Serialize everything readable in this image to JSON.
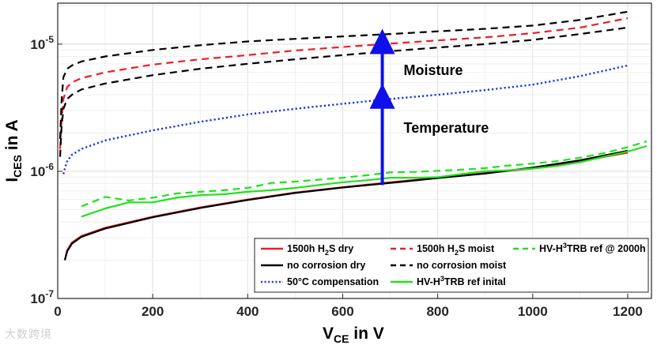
{
  "chart_data": {
    "type": "line",
    "xlabel": "V_CE in V",
    "ylabel": "I_CES in A",
    "xlim": [
      0,
      1250
    ],
    "ylim": [
      1e-07,
      2.1e-05
    ],
    "yscale": "log",
    "grid": true,
    "legend_position": "bottom-right",
    "x_ticks": [
      "0",
      "200",
      "400",
      "600",
      "800",
      "1000",
      "1200"
    ],
    "y_ticks": [
      "10^-7",
      "10^-6",
      "10^-5"
    ],
    "series": [
      {
        "name": "1500h H2S dry",
        "color": "#e8202a",
        "dash": "solid",
        "x": [
          15,
          20,
          30,
          50,
          100,
          200,
          300,
          400,
          500,
          600,
          700,
          800,
          900,
          1000,
          1100,
          1200
        ],
        "y": [
          2e-07,
          2.4e-07,
          2.75e-07,
          3.1e-07,
          3.6e-07,
          4.4e-07,
          5.2e-07,
          6e-07,
          6.8e-07,
          7.5e-07,
          8.2e-07,
          8.9e-07,
          9.7e-07,
          1.05e-06,
          1.2e-06,
          1.4e-06
        ]
      },
      {
        "name": "no corrosion dry",
        "color": "#000000",
        "dash": "solid",
        "x": [
          15,
          20,
          30,
          50,
          100,
          200,
          300,
          400,
          500,
          600,
          700,
          800,
          900,
          1000,
          1100,
          1200
        ],
        "y": [
          2e-07,
          2.35e-07,
          2.7e-07,
          3.05e-07,
          3.55e-07,
          4.35e-07,
          5.15e-07,
          5.95e-07,
          6.75e-07,
          7.45e-07,
          8.1e-07,
          8.85e-07,
          9.6e-07,
          1.07e-06,
          1.22e-06,
          1.45e-06
        ]
      },
      {
        "name": "50°C compensation",
        "color": "#1a35e0",
        "dash": "dotted",
        "x": [
          12,
          15,
          20,
          30,
          50,
          100,
          200,
          300,
          400,
          500,
          600,
          700,
          800,
          900,
          1000,
          1100,
          1200
        ],
        "y": [
          9.5e-07,
          1.05e-06,
          1.2e-06,
          1.35e-06,
          1.5e-06,
          1.75e-06,
          2.1e-06,
          2.45e-06,
          2.8e-06,
          3.1e-06,
          3.4e-06,
          3.7e-06,
          4e-06,
          4.35e-06,
          4.8e-06,
          5.6e-06,
          6.8e-06
        ]
      },
      {
        "name": "1500h H2S moist",
        "color": "#e8202a",
        "dash": "dashed",
        "x": [
          5,
          8,
          12,
          20,
          30,
          50,
          100,
          200,
          300,
          400,
          500,
          600,
          700,
          800,
          900,
          1000,
          1100,
          1200
        ],
        "y": [
          1.5e-06,
          2.5e-06,
          3.7e-06,
          4.6e-06,
          5e-06,
          5.4e-06,
          6e-06,
          6.9e-06,
          7.6e-06,
          8.2e-06,
          8.9e-06,
          9.5e-06,
          1.01e-05,
          1.07e-05,
          1.13e-05,
          1.22e-05,
          1.35e-05,
          1.6e-05
        ]
      },
      {
        "name": "no corrosion moist",
        "color": "#000000",
        "dash": "dashed",
        "x": [
          5,
          8,
          12,
          20,
          30,
          50,
          100,
          200,
          300,
          400,
          500,
          600,
          700,
          800,
          900,
          1000,
          1100,
          1200
        ],
        "y": [
          1.8e-06,
          3.5e-06,
          5.5e-06,
          6.4e-06,
          6.8e-06,
          7.3e-06,
          8e-06,
          9e-06,
          9.8e-06,
          1.05e-05,
          1.1e-05,
          1.15e-05,
          1.2e-05,
          1.26e-05,
          1.32e-05,
          1.4e-05,
          1.55e-05,
          1.8e-05
        ]
      },
      {
        "name": "no corrosion moist (lower)",
        "color": "#000000",
        "dash": "dashed",
        "x": [
          5,
          8,
          12,
          20,
          30,
          50,
          100,
          200,
          300,
          400,
          500,
          600,
          700,
          800,
          900,
          1000,
          1100,
          1200
        ],
        "y": [
          1.3e-06,
          2.2e-06,
          3.1e-06,
          3.7e-06,
          4e-06,
          4.4e-06,
          4.9e-06,
          5.7e-06,
          6.4e-06,
          7e-06,
          7.6e-06,
          8.2e-06,
          8.8e-06,
          9.4e-06,
          1e-05,
          1.08e-05,
          1.2e-05,
          1.35e-05
        ]
      },
      {
        "name": "HV-H3TRB ref inital",
        "color": "#22e01e",
        "dash": "solid",
        "x": [
          50,
          100,
          150,
          200,
          250,
          300,
          350,
          400,
          450,
          500,
          550,
          600,
          650,
          700,
          750,
          800,
          850,
          900,
          950,
          1000,
          1050,
          1100,
          1150,
          1200,
          1240
        ],
        "y": [
          4.4e-07,
          5.1e-07,
          5.7e-07,
          5.7e-07,
          6.2e-07,
          6.5e-07,
          6.6e-07,
          6.9e-07,
          7.1e-07,
          7.4e-07,
          7.8e-07,
          8.2e-07,
          8.5e-07,
          8.9e-07,
          8.9e-07,
          9e-07,
          9.5e-07,
          1e-06,
          1.02e-06,
          1.05e-06,
          1.1e-06,
          1.18e-06,
          1.3e-06,
          1.43e-06,
          1.58e-06
        ]
      },
      {
        "name": "HV-H3TRB ref @ 2000h",
        "color": "#22e01e",
        "dash": "dashed",
        "x": [
          50,
          100,
          150,
          200,
          250,
          300,
          350,
          400,
          450,
          500,
          550,
          600,
          650,
          700,
          750,
          800,
          850,
          900,
          950,
          1000,
          1050,
          1100,
          1150,
          1200,
          1240
        ],
        "y": [
          5.3e-07,
          6.3e-07,
          5.9e-07,
          6.2e-07,
          6.7e-07,
          6.9e-07,
          7.1e-07,
          7.4e-07,
          8.1e-07,
          8.3e-07,
          8.6e-07,
          8.9e-07,
          9.3e-07,
          9.8e-07,
          9.9e-07,
          1.01e-06,
          1.03e-06,
          1.06e-06,
          1.11e-06,
          1.15e-06,
          1.2e-06,
          1.28e-06,
          1.39e-06,
          1.55e-06,
          1.72e-06
        ]
      }
    ],
    "legend": [
      {
        "label": "1500h H",
        "sub": "2",
        "tail": "S dry",
        "color": "#e8202a",
        "dash": "solid"
      },
      {
        "label": "1500h H",
        "sub": "2",
        "tail": "S moist",
        "color": "#e8202a",
        "dash": "dashed"
      },
      {
        "label": "HV-H",
        "sup": "3",
        "tail": "TRB ref @ 2000h",
        "color": "#22e01e",
        "dash": "dashed"
      },
      {
        "label": "no corrosion dry",
        "color": "#000000",
        "dash": "solid"
      },
      {
        "label": "no corrosion moist",
        "color": "#000000",
        "dash": "dashed"
      },
      {
        "label": "50°C compensation",
        "color": "#1a35e0",
        "dash": "dotted"
      },
      {
        "label": "HV-H",
        "sup": "3",
        "tail": "TRB ref inital",
        "color": "#22e01e",
        "dash": "solid"
      }
    ],
    "annotations": [
      {
        "text": "Moisture",
        "arrow_from_y": 3.8e-06,
        "arrow_to_y": 1.05e-05,
        "x": 690
      },
      {
        "text": "Temperature",
        "arrow_from_y": 7.8e-07,
        "arrow_to_y": 3.9e-06,
        "x": 690
      }
    ]
  },
  "watermark": "大数跨境"
}
